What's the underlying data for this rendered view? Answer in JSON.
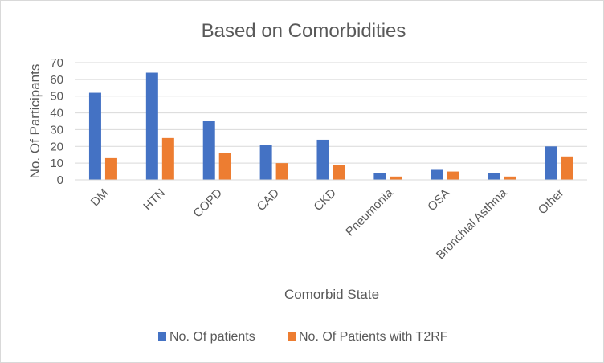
{
  "chart_data": {
    "type": "bar",
    "title": "Based on Comorbidities",
    "xlabel": "Comorbid State",
    "ylabel": "No. Of Participants",
    "ylim": [
      0,
      70
    ],
    "yticks": [
      0,
      10,
      20,
      30,
      40,
      50,
      60,
      70
    ],
    "grid": true,
    "legend": "bottom",
    "categories": [
      "DM",
      "HTN",
      "COPD",
      "CAD",
      "CKD",
      "Pneumonia",
      "OSA",
      "Bronchial Asthma",
      "Other"
    ],
    "series": [
      {
        "name": "No. Of patients",
        "color": "#4472c4",
        "values": [
          52,
          64,
          35,
          21,
          24,
          4,
          6,
          4,
          20
        ]
      },
      {
        "name": "No. Of Patients with T2RF",
        "color": "#ed7d31",
        "values": [
          13,
          25,
          16,
          10,
          9,
          2,
          5,
          2,
          14
        ]
      }
    ]
  }
}
